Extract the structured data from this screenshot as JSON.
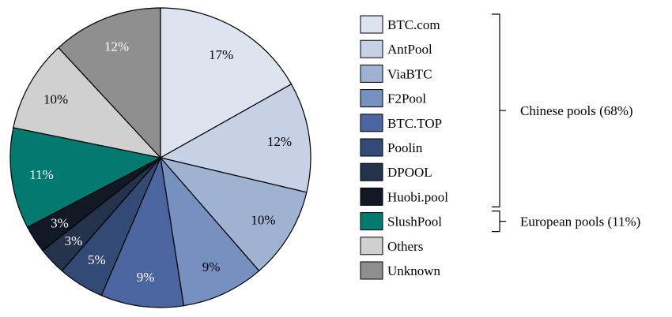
{
  "chart_data": {
    "type": "pie",
    "title": "",
    "slices": [
      {
        "label": "BTC.com",
        "value": 17,
        "display": "17%",
        "color": "#dde3ef",
        "text_color": "#000000"
      },
      {
        "label": "AntPool",
        "value": 12,
        "display": "12%",
        "color": "#c7d1e5",
        "text_color": "#000000"
      },
      {
        "label": "ViaBTC",
        "value": 10,
        "display": "10%",
        "color": "#a0b2d2",
        "text_color": "#000000"
      },
      {
        "label": "F2Pool",
        "value": 9,
        "display": "9%",
        "color": "#7690c0",
        "text_color": "#000000"
      },
      {
        "label": "BTC.TOP",
        "value": 9,
        "display": "9%",
        "color": "#4a65a0",
        "text_color": "#ffffff"
      },
      {
        "label": "Poolin",
        "value": 5,
        "display": "5%",
        "color": "#334a76",
        "text_color": "#ffffff"
      },
      {
        "label": "DPOOL",
        "value": 3,
        "display": "3%",
        "color": "#25324b",
        "text_color": "#ffffff"
      },
      {
        "label": "Huobi.pool",
        "value": 3,
        "display": "3%",
        "color": "#111826",
        "text_color": "#ffffff"
      },
      {
        "label": "SlushPool",
        "value": 11,
        "display": "11%",
        "color": "#037a70",
        "text_color": "#ffffff"
      },
      {
        "label": "Others",
        "value": 10,
        "display": "10%",
        "color": "#d0d0d0",
        "text_color": "#000000"
      },
      {
        "label": "Unknown",
        "value": 12,
        "display": "12%",
        "color": "#8f8f8f",
        "text_color": "#ffffff"
      }
    ],
    "groups": [
      {
        "label": "Chinese pools (68%)",
        "from": "BTC.com",
        "to": "Huobi.pool"
      },
      {
        "label": "European pools (11%)",
        "from": "SlushPool",
        "to": "SlushPool"
      }
    ],
    "legend_position": "right"
  }
}
